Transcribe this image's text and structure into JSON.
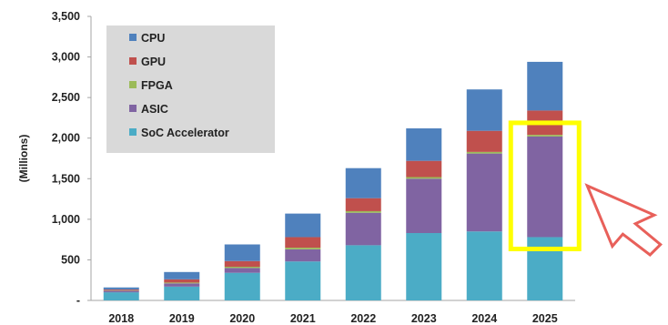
{
  "chart_data": {
    "type": "bar",
    "stacked": true,
    "categories": [
      "2018",
      "2019",
      "2020",
      "2021",
      "2022",
      "2023",
      "2024",
      "2025"
    ],
    "series": [
      {
        "name": "SoC Accelerator",
        "color": "#4bacc6",
        "values": [
          100,
          170,
          340,
          480,
          680,
          830,
          850,
          780
        ]
      },
      {
        "name": "ASIC",
        "color": "#8064a2",
        "values": [
          20,
          40,
          60,
          150,
          400,
          670,
          960,
          1240
        ]
      },
      {
        "name": "FPGA",
        "color": "#9bbb59",
        "values": [
          5,
          10,
          15,
          20,
          20,
          20,
          20,
          20
        ]
      },
      {
        "name": "GPU",
        "color": "#c0504d",
        "values": [
          10,
          40,
          70,
          130,
          160,
          200,
          260,
          300
        ]
      },
      {
        "name": "CPU",
        "color": "#4f81bd",
        "values": [
          25,
          90,
          205,
          290,
          370,
          400,
          510,
          600
        ]
      }
    ],
    "legend_order": [
      "CPU",
      "GPU",
      "FPGA",
      "ASIC",
      "SoC Accelerator"
    ],
    "ylabel": "(Millions)",
    "xlabel": "",
    "title": "",
    "ylim": [
      0,
      3500
    ],
    "yticks": [
      {
        "value": 0,
        "label": "-"
      },
      {
        "value": 500,
        "label": "500"
      },
      {
        "value": 1000,
        "label": "1,000"
      },
      {
        "value": 1500,
        "label": "1,500"
      },
      {
        "value": 2000,
        "label": "2,000"
      },
      {
        "value": 2500,
        "label": "2,500"
      },
      {
        "value": 3000,
        "label": "3,000"
      },
      {
        "value": 3500,
        "label": "3,500"
      }
    ],
    "grid": false,
    "legend_position": "top-left",
    "legend_background": "#d9d9d9",
    "highlight": {
      "category": "2025",
      "series": "ASIC",
      "box_color": "#ffff00",
      "arrow_color": "#e8605a"
    }
  }
}
